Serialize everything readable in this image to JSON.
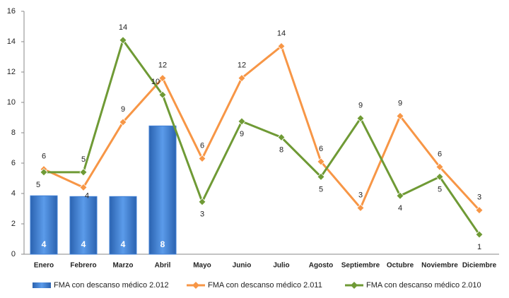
{
  "chart_data": {
    "type": "bar_line",
    "categories": [
      "Enero",
      "Febrero",
      "Marzo",
      "Abril",
      "Mayo",
      "Junio",
      "Julio",
      "Agosto",
      "Septiembre",
      "Octubre",
      "Noviembre",
      "Diciembre"
    ],
    "series": [
      {
        "name": "FMA con descanso médico 2.012",
        "type": "bar",
        "color": "#3f7fd6",
        "values": [
          3.85,
          3.8,
          3.8,
          8.45,
          null,
          null,
          null,
          null,
          null,
          null,
          null,
          null
        ],
        "value_labels": [
          "4",
          "4",
          "4",
          "8",
          null,
          null,
          null,
          null,
          null,
          null,
          null,
          null
        ]
      },
      {
        "name": "FMA con descanso médico 2.011",
        "type": "line",
        "color": "#f79646",
        "values": [
          5.6,
          4.4,
          8.7,
          11.6,
          6.3,
          11.6,
          13.7,
          6.1,
          3.05,
          9.1,
          5.75,
          2.9
        ],
        "value_labels": [
          "6",
          "4",
          "9",
          "12",
          "6",
          "12",
          "14",
          "6",
          "3",
          "9",
          "6",
          "3"
        ]
      },
      {
        "name": "FMA con descanso médico 2.010",
        "type": "line",
        "color": "#6f9a35",
        "values": [
          5.4,
          5.4,
          14.1,
          10.5,
          3.45,
          8.75,
          7.7,
          5.1,
          8.95,
          3.85,
          5.1,
          1.3
        ],
        "value_labels": [
          "5",
          "5",
          "14",
          "10",
          "3",
          "9",
          "8",
          "5",
          "9",
          "4",
          "5",
          "1"
        ]
      }
    ],
    "ylim": [
      0,
      16
    ],
    "yticks": [
      0,
      2,
      4,
      6,
      8,
      10,
      12,
      14,
      16
    ],
    "grid": false,
    "legend": "bottom"
  }
}
